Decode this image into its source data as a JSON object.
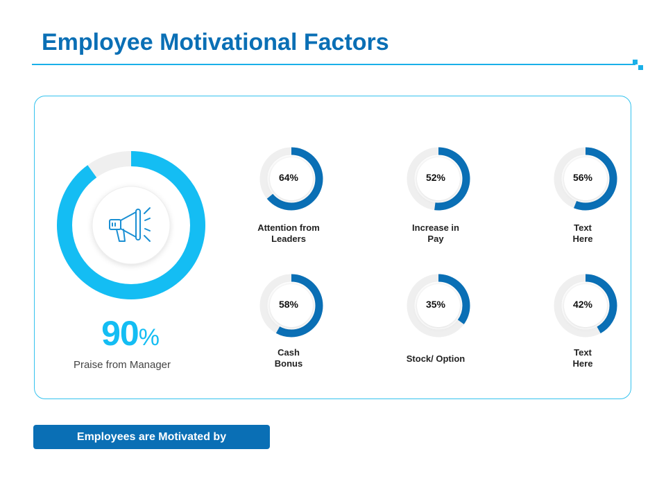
{
  "title": "Employee Motivational Factors",
  "main_factor": {
    "value": "90",
    "percent_sign": "%",
    "fraction": 0.9,
    "label": "Praise from Manager",
    "icon": "megaphone-icon"
  },
  "factors": [
    {
      "value": "64%",
      "fraction": 0.64,
      "label_lines": [
        "Attention from",
        "Leaders"
      ]
    },
    {
      "value": "52%",
      "fraction": 0.52,
      "label_lines": [
        "Increase in",
        "Pay"
      ]
    },
    {
      "value": "56%",
      "fraction": 0.56,
      "label_lines": [
        "Text",
        "Here"
      ]
    },
    {
      "value": "58%",
      "fraction": 0.58,
      "label_lines": [
        "Cash",
        "Bonus"
      ]
    },
    {
      "value": "35%",
      "fraction": 0.35,
      "label_lines": [
        "Stock/ Option"
      ]
    },
    {
      "value": "42%",
      "fraction": 0.42,
      "label_lines": [
        "Text",
        "Here"
      ]
    }
  ],
  "footer_button": "Employees are Motivated by",
  "colors": {
    "title": "#0a6fb5",
    "accent": "#1ab0e8",
    "big_ring": "#14bdf3",
    "small_ring": "#0a6fb5",
    "track": "#efefef",
    "button": "#0a6fb5"
  }
}
